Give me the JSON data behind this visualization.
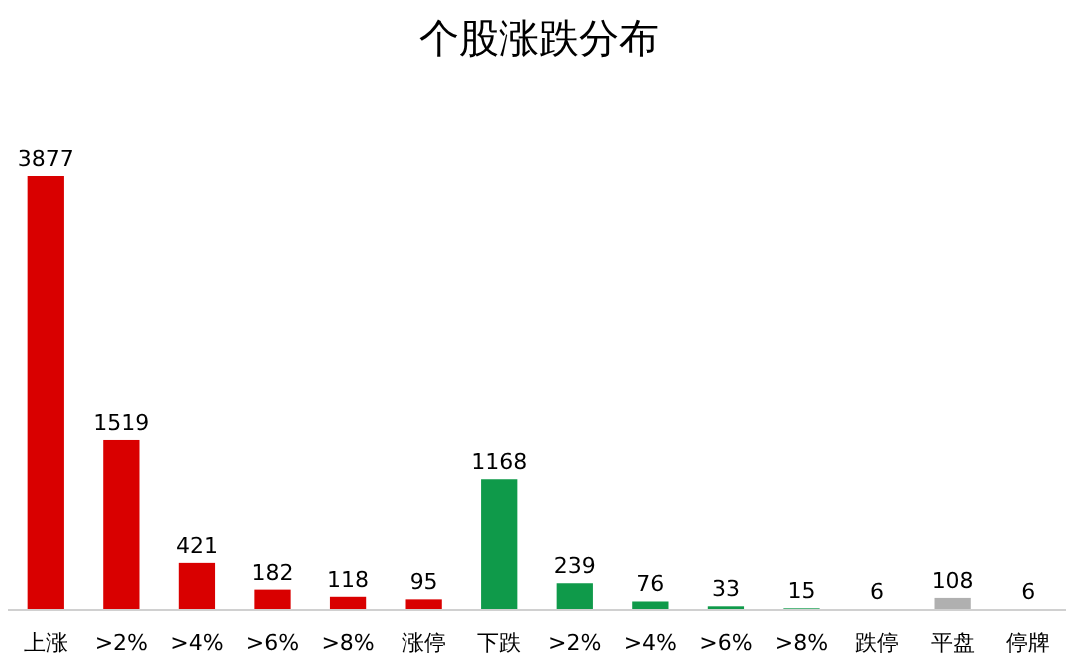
{
  "chart_data": {
    "type": "bar",
    "title": "个股涨跌分布",
    "categories": [
      "上涨",
      ">2%",
      ">4%",
      ">6%",
      ">8%",
      "涨停",
      "下跌",
      ">2%",
      ">4%",
      ">6%",
      ">8%",
      "跌停",
      "平盘",
      "停牌"
    ],
    "values": [
      3877,
      1519,
      421,
      182,
      118,
      95,
      1168,
      239,
      76,
      33,
      15,
      6,
      108,
      6
    ],
    "colors": [
      "#d90000",
      "#d90000",
      "#d90000",
      "#d90000",
      "#d90000",
      "#d90000",
      "#0f9a4a",
      "#0f9a4a",
      "#0f9a4a",
      "#0f9a4a",
      "#0f9a4a",
      "#0f9a4a",
      "#b0b0b0",
      "#808080"
    ],
    "data_labels": true
  }
}
